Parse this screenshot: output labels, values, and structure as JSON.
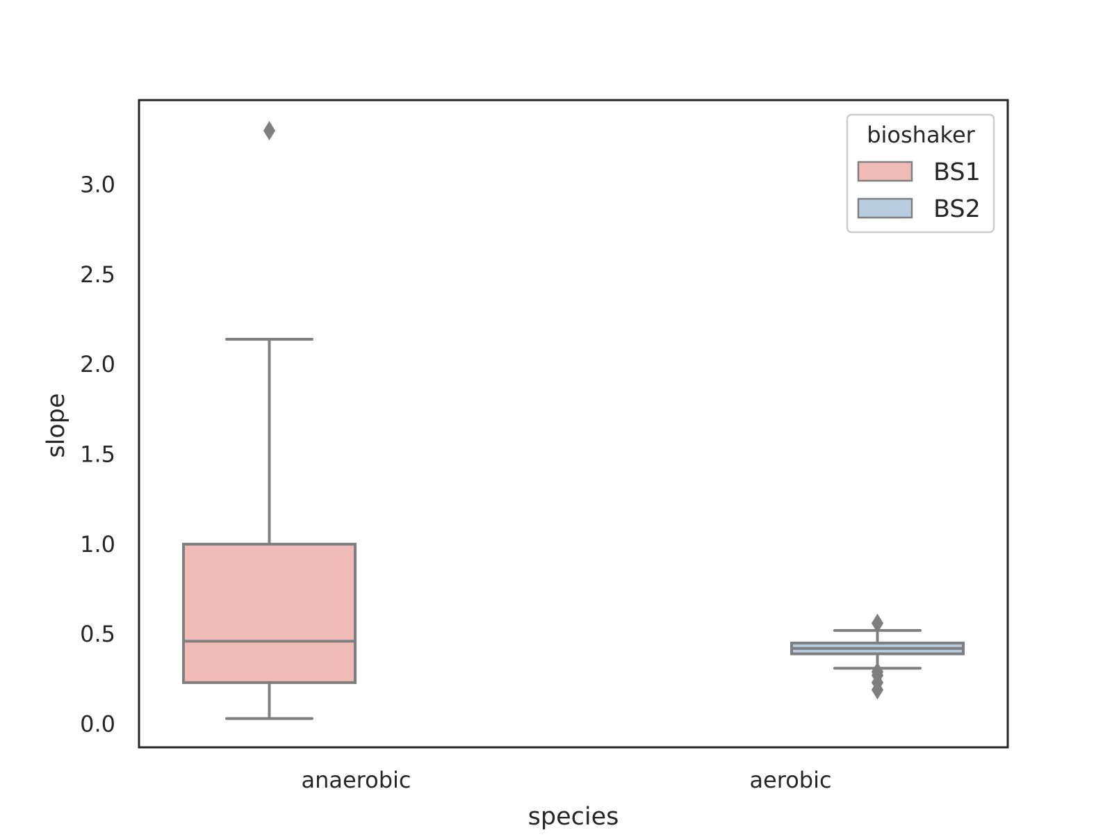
{
  "chart_data": {
    "type": "box",
    "title": "",
    "xlabel": "species",
    "ylabel": "slope",
    "categories": [
      "anaerobic",
      "aerobic"
    ],
    "ylim": [
      -0.13,
      3.47
    ],
    "yticks": [
      0.0,
      0.5,
      1.0,
      1.5,
      2.0,
      2.5,
      3.0
    ],
    "ytick_labels": [
      "0.0",
      "0.5",
      "1.0",
      "1.5",
      "2.0",
      "2.5",
      "3.0"
    ],
    "grid": false,
    "legend": {
      "title": "bioshaker",
      "placement": "top-right",
      "entries": [
        "BS1",
        "BS2"
      ]
    },
    "series": [
      {
        "name": "BS1",
        "color": "#f0bab7",
        "category": "anaerobic",
        "whisker_low": 0.03,
        "q1": 0.23,
        "median": 0.46,
        "q3": 1.0,
        "whisker_high": 2.14,
        "outliers": [
          3.3
        ]
      },
      {
        "name": "BS2",
        "color": "#b9cde0",
        "category": "aerobic",
        "whisker_low": 0.31,
        "q1": 0.39,
        "median": 0.42,
        "q3": 0.45,
        "whisker_high": 0.52,
        "outliers": [
          0.56,
          0.29,
          0.27,
          0.23,
          0.19
        ]
      }
    ],
    "colors": {
      "frame": "#262626",
      "box_edge": "#7f7f7f"
    }
  }
}
